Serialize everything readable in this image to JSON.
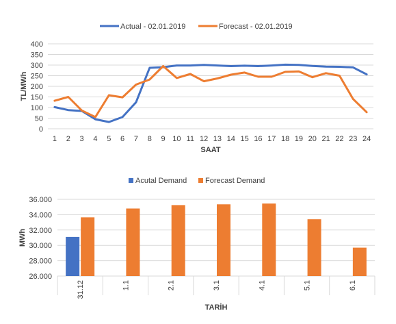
{
  "chart_data": [
    {
      "type": "line",
      "title": "",
      "xlabel": "SAAT",
      "ylabel": "TL/MWh",
      "ylim": [
        0,
        400
      ],
      "yticks": [
        "0",
        "50",
        "100",
        "150",
        "200",
        "250",
        "300",
        "350",
        "400"
      ],
      "grid": true,
      "legend_position": "top",
      "x": [
        "1",
        "2",
        "3",
        "4",
        "5",
        "6",
        "7",
        "8",
        "9",
        "10",
        "11",
        "12",
        "13",
        "14",
        "15",
        "16",
        "17",
        "18",
        "19",
        "20",
        "21",
        "22",
        "23",
        "24"
      ],
      "series": [
        {
          "name": "Actual - 02.01.2019",
          "color": "#4472C4",
          "values": [
            102,
            88,
            84,
            45,
            32,
            55,
            125,
            287,
            290,
            298,
            298,
            301,
            298,
            295,
            297,
            295,
            298,
            302,
            301,
            296,
            293,
            292,
            289,
            256
          ]
        },
        {
          "name": "Forecast - 02.01.2019",
          "color": "#ED7D31",
          "values": [
            132,
            150,
            86,
            55,
            158,
            148,
            208,
            232,
            295,
            239,
            258,
            224,
            237,
            255,
            265,
            245,
            245,
            268,
            270,
            243,
            262,
            250,
            140,
            78
          ]
        }
      ]
    },
    {
      "type": "bar",
      "title": "",
      "xlabel": "TARİH",
      "ylabel": "MWh",
      "ylim": [
        26000,
        36000
      ],
      "yticks": [
        "26.000",
        "28.000",
        "30.000",
        "32.000",
        "34.000",
        "36.000"
      ],
      "grid": true,
      "legend_position": "top",
      "categories": [
        "31.12",
        "1.1",
        "2.1",
        "3.1",
        "4.1",
        "5.1",
        "6.1"
      ],
      "series": [
        {
          "name": "Acutal Demand",
          "color": "#4472C4",
          "values": [
            31100,
            null,
            null,
            null,
            null,
            null,
            null
          ]
        },
        {
          "name": "Forecast Demand",
          "color": "#ED7D31",
          "values": [
            33650,
            34800,
            35250,
            35350,
            35450,
            33400,
            29700
          ]
        }
      ]
    }
  ]
}
